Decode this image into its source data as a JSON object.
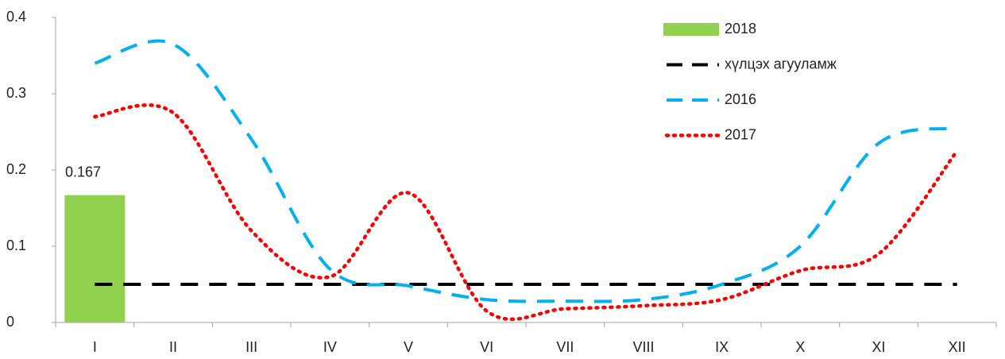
{
  "chart_data": {
    "type": "bar",
    "categories": [
      "I",
      "II",
      "III",
      "IV",
      "V",
      "VI",
      "VII",
      "VIII",
      "IX",
      "X",
      "XI",
      "XII"
    ],
    "series": [
      {
        "name": "2018",
        "type": "bar",
        "color": "#92d050",
        "values": [
          0.167,
          null,
          null,
          null,
          null,
          null,
          null,
          null,
          null,
          null,
          null,
          null
        ]
      },
      {
        "name": "хүлцэх агууламж",
        "type": "line",
        "dash": "dashed",
        "color": "#000000",
        "values": [
          0.05,
          0.05,
          0.05,
          0.05,
          0.05,
          0.05,
          0.05,
          0.05,
          0.05,
          0.05,
          0.05,
          0.05
        ]
      },
      {
        "name": "2016",
        "type": "line",
        "dash": "dashed",
        "color": "#00b0f0",
        "values": [
          0.34,
          0.365,
          0.24,
          0.07,
          0.048,
          0.03,
          0.028,
          0.03,
          0.05,
          0.1,
          0.235,
          0.255
        ]
      },
      {
        "name": "2017",
        "type": "line",
        "dash": "dotted",
        "color": "#ff0000",
        "values": [
          0.27,
          0.275,
          0.12,
          0.06,
          0.17,
          0.015,
          0.018,
          0.022,
          0.03,
          0.068,
          0.09,
          0.225
        ]
      }
    ],
    "ylim": [
      0,
      0.4
    ],
    "yticks": [
      0,
      0.1,
      0.2,
      0.3,
      0.4
    ],
    "grid": false,
    "legend": "top-right"
  }
}
